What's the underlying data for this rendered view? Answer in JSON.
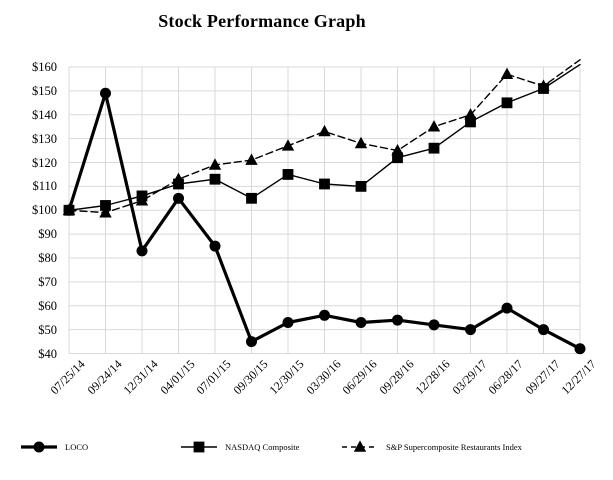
{
  "chart_data": {
    "type": "line",
    "title": "Stock Performance Graph",
    "categories": [
      "07/25/14",
      "09/24/14",
      "12/31/14",
      "04/01/15",
      "07/01/15",
      "09/30/15",
      "12/30/15",
      "03/30/16",
      "06/29/16",
      "09/28/16",
      "12/28/16",
      "03/29/17",
      "06/28/17",
      "09/27/17",
      "12/27/17"
    ],
    "series": [
      {
        "name": "LOCO",
        "marker": "circle",
        "line": "solid",
        "line_width": 3.2,
        "values": [
          100,
          149,
          83,
          105,
          85,
          45,
          53,
          56,
          53,
          54,
          52,
          50,
          59,
          50,
          42
        ]
      },
      {
        "name": "NASDAQ Composite",
        "marker": "square",
        "line": "solid",
        "line_width": 1.4,
        "values": [
          100,
          102,
          106,
          111,
          113,
          105,
          115,
          111,
          110,
          122,
          126,
          137,
          145,
          151,
          161
        ]
      },
      {
        "name": "S&P Supercomposite Restaurants Index",
        "marker": "triangle",
        "line": "dashed",
        "line_width": 1.4,
        "values": [
          100,
          99,
          104,
          113,
          119,
          121,
          127,
          133,
          128,
          125,
          135,
          140,
          157,
          152,
          163
        ]
      }
    ],
    "y_ticks": [
      "$160",
      "$150",
      "$140",
      "$130",
      "$120",
      "$110",
      "$100",
      "$90",
      "$80",
      "$70",
      "$60",
      "$50",
      "$40"
    ],
    "ylim": [
      40,
      160
    ],
    "y_tick_step": 10,
    "grid": true,
    "legend_position": "bottom",
    "colors": {
      "series": "#000000",
      "grid": "#d9d9d9",
      "background": "#ffffff",
      "text": "#000000"
    }
  }
}
